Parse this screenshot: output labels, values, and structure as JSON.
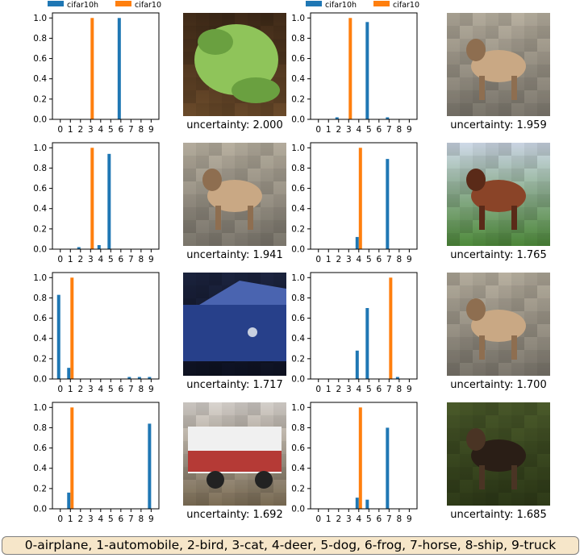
{
  "colors": {
    "cifar10h": "#1f77b4",
    "cifar10": "#ff7f0e",
    "legend_box": "#f6e6c9"
  },
  "legend": [
    "cifar10h",
    "cifar10"
  ],
  "footer_text": "0-airplane, 1-automobile, 2-bird, 3-cat, 4-deer, 5-dog, 6-frog, 7-horse, 8-ship, 9-truck",
  "chart_data": [
    {
      "type": "bar",
      "categories": [
        "0",
        "1",
        "2",
        "3",
        "4",
        "5",
        "6",
        "7",
        "8",
        "9"
      ],
      "ylim": [
        0,
        1.05
      ],
      "yticks": [
        "0.0",
        "0.2",
        "0.4",
        "0.6",
        "0.8",
        "1.0"
      ],
      "series": [
        {
          "name": "cifar10h",
          "values": [
            0,
            0,
            0,
            0,
            0,
            0,
            1.0,
            0,
            0,
            0
          ]
        },
        {
          "name": "cifar10",
          "values": [
            0,
            0,
            0,
            1.0,
            0,
            0,
            0,
            0,
            0,
            0
          ]
        }
      ],
      "image_content": "frog",
      "uncertainty_label": "uncertainty: 2.000"
    },
    {
      "type": "bar",
      "categories": [
        "0",
        "1",
        "2",
        "3",
        "4",
        "5",
        "6",
        "7",
        "8",
        "9"
      ],
      "ylim": [
        0,
        1.05
      ],
      "yticks": [
        "0.0",
        "0.2",
        "0.4",
        "0.6",
        "0.8",
        "1.0"
      ],
      "series": [
        {
          "name": "cifar10h",
          "values": [
            0,
            0,
            0.02,
            0,
            0,
            0.96,
            0,
            0.02,
            0,
            0
          ]
        },
        {
          "name": "cifar10",
          "values": [
            0,
            0,
            0,
            1.0,
            0,
            0,
            0,
            0,
            0,
            0
          ]
        }
      ],
      "image_content": "dog",
      "uncertainty_label": "uncertainty: 1.959"
    },
    {
      "type": "bar",
      "categories": [
        "0",
        "1",
        "2",
        "3",
        "4",
        "5",
        "6",
        "7",
        "8",
        "9"
      ],
      "ylim": [
        0,
        1.05
      ],
      "yticks": [
        "0.0",
        "0.2",
        "0.4",
        "0.6",
        "0.8",
        "1.0"
      ],
      "series": [
        {
          "name": "cifar10h",
          "values": [
            0,
            0,
            0.02,
            0,
            0.04,
            0.94,
            0,
            0,
            0,
            0
          ]
        },
        {
          "name": "cifar10",
          "values": [
            0,
            0,
            0,
            1.0,
            0,
            0,
            0,
            0,
            0,
            0
          ]
        }
      ],
      "image_content": "dog",
      "uncertainty_label": "uncertainty: 1.941"
    },
    {
      "type": "bar",
      "categories": [
        "0",
        "1",
        "2",
        "3",
        "4",
        "5",
        "6",
        "7",
        "8",
        "9"
      ],
      "ylim": [
        0,
        1.05
      ],
      "yticks": [
        "0.0",
        "0.2",
        "0.4",
        "0.6",
        "0.8",
        "1.0"
      ],
      "series": [
        {
          "name": "cifar10h",
          "values": [
            0,
            0,
            0,
            0,
            0.12,
            0,
            0,
            0.89,
            0,
            0
          ]
        },
        {
          "name": "cifar10",
          "values": [
            0,
            0,
            0,
            0,
            1.0,
            0,
            0,
            0,
            0,
            0
          ]
        }
      ],
      "image_content": "deer",
      "uncertainty_label": "uncertainty: 1.765"
    },
    {
      "type": "bar",
      "categories": [
        "0",
        "1",
        "2",
        "3",
        "4",
        "5",
        "6",
        "7",
        "8",
        "9"
      ],
      "ylim": [
        0,
        1.05
      ],
      "yticks": [
        "0.0",
        "0.2",
        "0.4",
        "0.6",
        "0.8",
        "1.0"
      ],
      "series": [
        {
          "name": "cifar10h",
          "values": [
            0.83,
            0.11,
            0,
            0,
            0,
            0,
            0,
            0.02,
            0.02,
            0.02
          ]
        },
        {
          "name": "cifar10",
          "values": [
            0,
            1.0,
            0,
            0,
            0,
            0,
            0,
            0,
            0,
            0
          ]
        }
      ],
      "image_content": "car",
      "uncertainty_label": "uncertainty: 1.717"
    },
    {
      "type": "bar",
      "categories": [
        "0",
        "1",
        "2",
        "3",
        "4",
        "5",
        "6",
        "7",
        "8",
        "9"
      ],
      "ylim": [
        0,
        1.05
      ],
      "yticks": [
        "0.0",
        "0.2",
        "0.4",
        "0.6",
        "0.8",
        "1.0"
      ],
      "series": [
        {
          "name": "cifar10h",
          "values": [
            0,
            0,
            0,
            0,
            0.28,
            0.7,
            0,
            0,
            0.02,
            0
          ]
        },
        {
          "name": "cifar10",
          "values": [
            0,
            0,
            0,
            0,
            0,
            0,
            0,
            1.0,
            0,
            0
          ]
        }
      ],
      "image_content": "dog",
      "uncertainty_label": "uncertainty: 1.700"
    },
    {
      "type": "bar",
      "categories": [
        "0",
        "1",
        "2",
        "3",
        "4",
        "5",
        "6",
        "7",
        "8",
        "9"
      ],
      "ylim": [
        0,
        1.05
      ],
      "yticks": [
        "0.0",
        "0.2",
        "0.4",
        "0.6",
        "0.8",
        "1.0"
      ],
      "series": [
        {
          "name": "cifar10h",
          "values": [
            0,
            0.16,
            0,
            0,
            0,
            0,
            0,
            0,
            0,
            0.84
          ]
        },
        {
          "name": "cifar10",
          "values": [
            0,
            1.0,
            0,
            0,
            0,
            0,
            0,
            0,
            0,
            0
          ]
        }
      ],
      "image_content": "truck",
      "uncertainty_label": "uncertainty: 1.692"
    },
    {
      "type": "bar",
      "categories": [
        "0",
        "1",
        "2",
        "3",
        "4",
        "5",
        "6",
        "7",
        "8",
        "9"
      ],
      "ylim": [
        0,
        1.05
      ],
      "yticks": [
        "0.0",
        "0.2",
        "0.4",
        "0.6",
        "0.8",
        "1.0"
      ],
      "series": [
        {
          "name": "cifar10h",
          "values": [
            0,
            0,
            0,
            0,
            0.11,
            0.09,
            0,
            0.8,
            0,
            0
          ]
        },
        {
          "name": "cifar10",
          "values": [
            0,
            0,
            0,
            0,
            1.0,
            0,
            0,
            0,
            0,
            0
          ]
        }
      ],
      "image_content": "horse",
      "uncertainty_label": "uncertainty: 1.685"
    }
  ]
}
